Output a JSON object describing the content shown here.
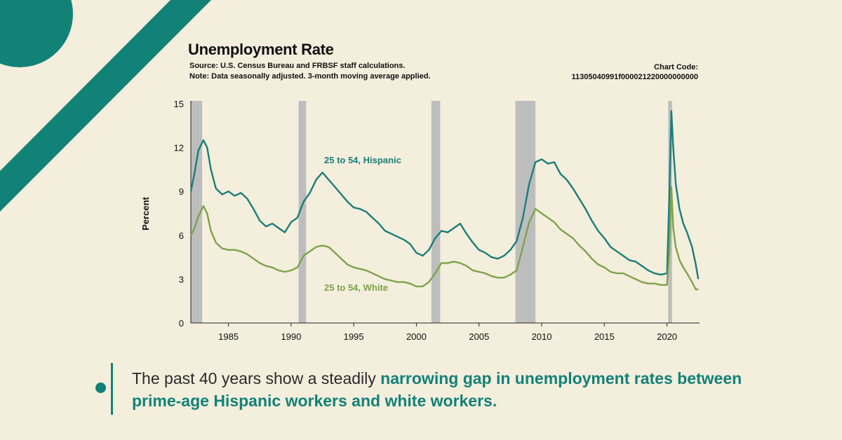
{
  "colors": {
    "background": "#f4eedd",
    "accent": "#128277",
    "hispanic": "#1a7e78",
    "white": "#7da34a",
    "recession": "#bdbdbd"
  },
  "header": {
    "title": "Unemployment Rate",
    "source": "Source: U.S. Census Bureau and FRBSF staff calculations.",
    "note": "Note: Data seasonally adjusted.  3-month moving average applied.",
    "chart_code_label": "Chart Code:",
    "chart_code_value": "11305040991f000021220000000000"
  },
  "callout": {
    "lead": "The past 40 years show a steadily ",
    "highlight": "narrowing gap in unemployment rates between prime-age Hispanic workers and white workers."
  },
  "chart_data": {
    "type": "line",
    "title": "Unemployment Rate",
    "xlabel": "",
    "ylabel": "Percent",
    "xlim": [
      1982,
      2022.6
    ],
    "ylim": [
      0,
      15
    ],
    "xticks": [
      1985,
      1990,
      1995,
      2000,
      2005,
      2010,
      2015,
      2020
    ],
    "yticks": [
      0,
      3,
      6,
      9,
      12,
      15
    ],
    "grid": false,
    "recessions": [
      [
        1982.0,
        1982.9
      ],
      [
        1990.6,
        1991.2
      ],
      [
        2001.2,
        2001.9
      ],
      [
        2007.9,
        2009.5
      ],
      [
        2020.1,
        2020.4
      ]
    ],
    "series": [
      {
        "name": "25 to 54, Hispanic",
        "x": [
          1982.0,
          1982.3,
          1982.6,
          1983.0,
          1983.3,
          1983.6,
          1984.0,
          1984.5,
          1985.0,
          1985.5,
          1986.0,
          1986.5,
          1987.0,
          1987.5,
          1988.0,
          1988.5,
          1989.0,
          1989.5,
          1990.0,
          1990.5,
          1991.0,
          1991.5,
          1992.0,
          1992.5,
          1993.0,
          1993.5,
          1994.0,
          1994.5,
          1995.0,
          1995.5,
          1996.0,
          1996.5,
          1997.0,
          1997.5,
          1998.0,
          1998.5,
          1999.0,
          1999.5,
          2000.0,
          2000.5,
          2001.0,
          2001.5,
          2002.0,
          2002.5,
          2003.0,
          2003.5,
          2004.0,
          2004.5,
          2005.0,
          2005.5,
          2006.0,
          2006.5,
          2007.0,
          2007.5,
          2008.0,
          2008.5,
          2009.0,
          2009.5,
          2010.0,
          2010.5,
          2011.0,
          2011.5,
          2012.0,
          2012.5,
          2013.0,
          2013.5,
          2014.0,
          2014.5,
          2015.0,
          2015.5,
          2016.0,
          2016.5,
          2017.0,
          2017.5,
          2018.0,
          2018.5,
          2019.0,
          2019.5,
          2020.0,
          2020.2,
          2020.35,
          2020.5,
          2020.7,
          2021.0,
          2021.3,
          2021.6,
          2022.0,
          2022.3,
          2022.5
        ],
        "values": [
          9.0,
          10.3,
          11.8,
          12.5,
          12.0,
          10.5,
          9.2,
          8.8,
          9.0,
          8.7,
          8.9,
          8.5,
          7.8,
          7.0,
          6.6,
          6.8,
          6.5,
          6.2,
          6.9,
          7.2,
          8.3,
          8.9,
          9.8,
          10.3,
          9.8,
          9.3,
          8.8,
          8.3,
          7.9,
          7.8,
          7.6,
          7.2,
          6.8,
          6.3,
          6.1,
          5.9,
          5.7,
          5.4,
          4.8,
          4.6,
          5.0,
          5.8,
          6.3,
          6.2,
          6.5,
          6.8,
          6.1,
          5.5,
          5.0,
          4.8,
          4.5,
          4.4,
          4.6,
          5.0,
          5.6,
          7.2,
          9.5,
          11.0,
          11.2,
          10.9,
          11.0,
          10.2,
          9.8,
          9.2,
          8.5,
          7.8,
          7.0,
          6.3,
          5.8,
          5.2,
          4.9,
          4.6,
          4.3,
          4.2,
          3.9,
          3.6,
          3.4,
          3.3,
          3.4,
          9.0,
          14.5,
          12.0,
          9.5,
          7.8,
          6.8,
          6.2,
          5.2,
          4.0,
          3.0
        ]
      },
      {
        "name": "25 to 54, White",
        "x": [
          1982.0,
          1982.3,
          1982.6,
          1983.0,
          1983.3,
          1983.6,
          1984.0,
          1984.5,
          1985.0,
          1985.5,
          1986.0,
          1986.5,
          1987.0,
          1987.5,
          1988.0,
          1988.5,
          1989.0,
          1989.5,
          1990.0,
          1990.5,
          1991.0,
          1991.5,
          1992.0,
          1992.5,
          1993.0,
          1993.5,
          1994.0,
          1994.5,
          1995.0,
          1995.5,
          1996.0,
          1996.5,
          1997.0,
          1997.5,
          1998.0,
          1998.5,
          1999.0,
          1999.5,
          2000.0,
          2000.5,
          2001.0,
          2001.5,
          2002.0,
          2002.5,
          2003.0,
          2003.5,
          2004.0,
          2004.5,
          2005.0,
          2005.5,
          2006.0,
          2006.5,
          2007.0,
          2007.5,
          2008.0,
          2008.5,
          2009.0,
          2009.5,
          2010.0,
          2010.5,
          2011.0,
          2011.5,
          2012.0,
          2012.5,
          2013.0,
          2013.5,
          2014.0,
          2014.5,
          2015.0,
          2015.5,
          2016.0,
          2016.5,
          2017.0,
          2017.5,
          2018.0,
          2018.5,
          2019.0,
          2019.5,
          2020.0,
          2020.2,
          2020.35,
          2020.5,
          2020.7,
          2021.0,
          2021.3,
          2021.6,
          2022.0,
          2022.3,
          2022.5
        ],
        "values": [
          6.0,
          6.5,
          7.3,
          8.0,
          7.5,
          6.3,
          5.5,
          5.1,
          5.0,
          5.0,
          4.9,
          4.7,
          4.4,
          4.1,
          3.9,
          3.8,
          3.6,
          3.5,
          3.6,
          3.8,
          4.6,
          4.9,
          5.2,
          5.3,
          5.2,
          4.8,
          4.4,
          4.0,
          3.8,
          3.7,
          3.6,
          3.4,
          3.2,
          3.0,
          2.9,
          2.8,
          2.8,
          2.7,
          2.5,
          2.5,
          2.8,
          3.4,
          4.1,
          4.1,
          4.2,
          4.1,
          3.9,
          3.6,
          3.5,
          3.4,
          3.2,
          3.1,
          3.1,
          3.3,
          3.6,
          5.2,
          6.9,
          7.8,
          7.5,
          7.2,
          6.9,
          6.4,
          6.1,
          5.8,
          5.3,
          4.9,
          4.4,
          4.0,
          3.8,
          3.5,
          3.4,
          3.4,
          3.2,
          3.0,
          2.8,
          2.7,
          2.7,
          2.6,
          2.6,
          5.0,
          9.3,
          6.5,
          5.2,
          4.3,
          3.8,
          3.4,
          2.8,
          2.3,
          2.3
        ]
      }
    ]
  }
}
